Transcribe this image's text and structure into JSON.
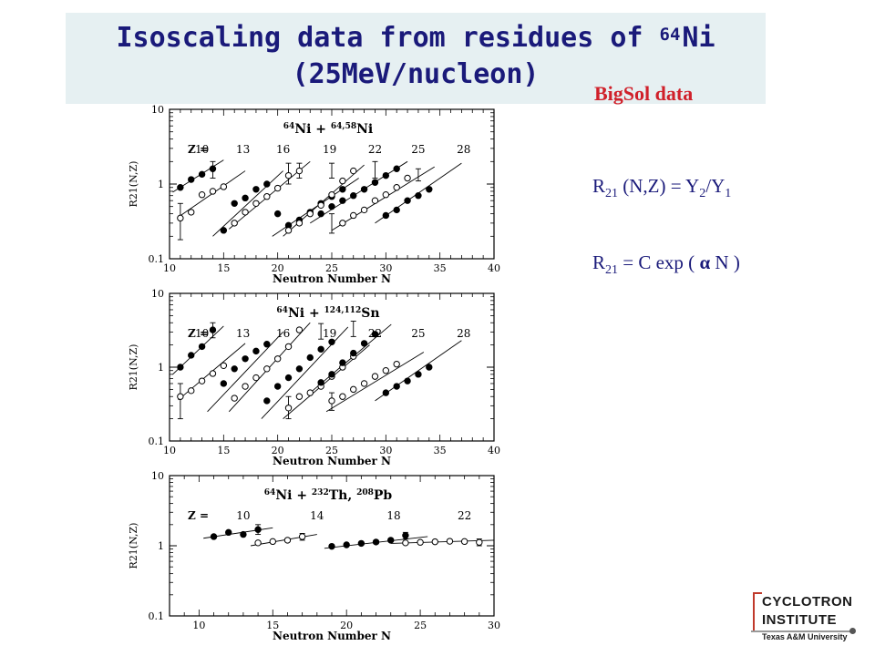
{
  "slide": {
    "title_line1": "Isoscaling data from residues of ",
    "title_sup": "64",
    "title_elem": "Ni",
    "title_line2": "(25MeV/nucleon)",
    "bigsol": "BigSol data",
    "formula1": {
      "R": "R",
      "sub1": "21",
      "rest1": " (N,Z) = Y",
      "sub2": "2",
      "rest2": "/Y",
      "sub3": "1"
    },
    "formula2": {
      "R": "R",
      "sub1": "21",
      "rest1": " = C exp ( ",
      "alpha": "α",
      "rest2": " N )"
    },
    "logo": {
      "line1": "CYCLOTRON",
      "line2": "INSTITUTE",
      "line3": "Texas A&M University"
    },
    "colors": {
      "title": "#1a1a7a",
      "bigsol": "#d0202a",
      "title_bg": "#e6f0f2"
    }
  },
  "chart_data": [
    {
      "type": "scatter",
      "title_parts": [
        "64",
        "Ni + ",
        "64,58",
        "Ni"
      ],
      "xlabel": "Neutron Number N",
      "ylabel": "R21(N,Z)",
      "xlim": [
        10,
        40
      ],
      "ylim": [
        0.1,
        10
      ],
      "ylog": true,
      "xticks": [
        10,
        15,
        20,
        25,
        30,
        35,
        40
      ],
      "yticks": [
        0.1,
        1,
        10
      ],
      "z_label": "Z =",
      "z_values": [
        "10",
        "13",
        "16",
        "19",
        "22",
        "25",
        "28"
      ],
      "z_positions": [
        13.0,
        16.8,
        20.5,
        24.8,
        29.0,
        33.0,
        37.2
      ],
      "series": [
        {
          "z": 10,
          "filled": true,
          "x": [
            11,
            12,
            13,
            14
          ],
          "y": [
            0.9,
            1.15,
            1.35,
            1.6
          ],
          "line_x": [
            10.3,
            15
          ],
          "line_y": [
            0.78,
            2.1
          ]
        },
        {
          "z": 11,
          "filled": false,
          "x": [
            11,
            12,
            13,
            14,
            15
          ],
          "y": [
            0.35,
            0.42,
            0.72,
            0.8,
            0.92
          ],
          "line_x": [
            10.8,
            17
          ],
          "line_y": [
            0.36,
            1.5
          ]
        },
        {
          "z": 12,
          "filled": true,
          "x": [
            15,
            16,
            17,
            18,
            19
          ],
          "y": [
            0.24,
            0.55,
            0.65,
            0.85,
            1.0
          ],
          "line_x": [
            14,
            20.5
          ],
          "line_y": [
            0.2,
            1.5
          ]
        },
        {
          "z": 13,
          "filled": false,
          "x": [
            16,
            17,
            18,
            19,
            20,
            21,
            22
          ],
          "y": [
            0.3,
            0.42,
            0.55,
            0.68,
            0.88,
            1.3,
            1.5
          ],
          "line_x": [
            15.5,
            23
          ],
          "line_y": [
            0.25,
            2.0
          ]
        },
        {
          "z": 14,
          "filled": true,
          "x": [
            20,
            21,
            22,
            23,
            24,
            25,
            26
          ],
          "y": [
            0.4,
            0.28,
            0.33,
            0.42,
            0.55,
            0.68,
            0.85
          ],
          "line_x": [
            19.5,
            27.5
          ],
          "line_y": [
            0.2,
            1.2
          ]
        },
        {
          "z": 15,
          "filled": false,
          "x": [
            21,
            22,
            23,
            24,
            25,
            26,
            27
          ],
          "y": [
            0.24,
            0.3,
            0.4,
            0.52,
            0.72,
            1.1,
            1.5
          ],
          "line_x": [
            20.5,
            28
          ],
          "line_y": [
            0.2,
            1.8
          ]
        },
        {
          "z": 16,
          "filled": true,
          "x": [
            24,
            25,
            26,
            27,
            28,
            29,
            30,
            31
          ],
          "y": [
            0.4,
            0.5,
            0.6,
            0.7,
            0.85,
            1.05,
            1.3,
            1.6
          ],
          "line_x": [
            23,
            32
          ],
          "line_y": [
            0.3,
            2.0
          ]
        },
        {
          "z": 17,
          "filled": false,
          "x": [
            26,
            27,
            28,
            29,
            30,
            31,
            32
          ],
          "y": [
            0.3,
            0.38,
            0.45,
            0.6,
            0.72,
            0.9,
            1.2
          ],
          "line_x": [
            25,
            34.5
          ],
          "line_y": [
            0.24,
            1.7
          ]
        },
        {
          "z": 18,
          "filled": true,
          "x": [
            30,
            31,
            32,
            33,
            34
          ],
          "y": [
            0.38,
            0.45,
            0.6,
            0.7,
            0.85
          ],
          "line_x": [
            29,
            37
          ],
          "line_y": [
            0.3,
            1.9
          ]
        }
      ],
      "error_bars": [
        {
          "x": 11,
          "y": 0.35,
          "lo": 0.18,
          "hi": 0.55
        },
        {
          "x": 14,
          "y": 1.6,
          "lo": 1.2,
          "hi": 2.0
        },
        {
          "x": 21,
          "y": 1.3,
          "lo": 1.0,
          "hi": 1.9
        },
        {
          "x": 22,
          "y": 1.5,
          "lo": 1.2,
          "hi": 1.9
        },
        {
          "x": 25,
          "y": 1.5,
          "lo": 1.2,
          "hi": 1.9
        },
        {
          "x": 25,
          "y": 0.3,
          "lo": 0.22,
          "hi": 0.4
        },
        {
          "x": 29,
          "y": 1.6,
          "lo": 1.2,
          "hi": 2.0
        },
        {
          "x": 33,
          "y": 1.3,
          "lo": 1.1,
          "hi": 1.6
        }
      ]
    },
    {
      "type": "scatter",
      "title_parts": [
        "64",
        "Ni + ",
        "124,112",
        "Sn"
      ],
      "xlabel": "Neutron Number N",
      "ylabel": "R21(N,Z)",
      "xlim": [
        10,
        40
      ],
      "ylim": [
        0.1,
        10
      ],
      "ylog": true,
      "xticks": [
        10,
        15,
        20,
        25,
        30,
        35,
        40
      ],
      "yticks": [
        0.1,
        1,
        10
      ],
      "z_label": "Z =",
      "z_values": [
        "10",
        "13",
        "16",
        "19",
        "22",
        "25",
        "28"
      ],
      "z_positions": [
        13.0,
        16.8,
        20.5,
        24.8,
        29.0,
        33.0,
        37.2
      ],
      "series": [
        {
          "z": 10,
          "filled": true,
          "x": [
            11,
            12,
            13,
            14
          ],
          "y": [
            1.0,
            1.45,
            1.9,
            3.2
          ],
          "line_x": [
            10.3,
            15
          ],
          "line_y": [
            0.8,
            3.6
          ]
        },
        {
          "z": 11,
          "filled": false,
          "x": [
            11,
            12,
            13,
            14,
            15
          ],
          "y": [
            0.4,
            0.48,
            0.65,
            0.82,
            1.05
          ],
          "line_x": [
            10.8,
            17
          ],
          "line_y": [
            0.36,
            2.1
          ]
        },
        {
          "z": 12,
          "filled": true,
          "x": [
            15,
            16,
            17,
            18,
            19
          ],
          "y": [
            0.6,
            0.95,
            1.3,
            1.65,
            2.05
          ],
          "line_x": [
            13.5,
            20.5
          ],
          "line_y": [
            0.25,
            3.0
          ]
        },
        {
          "z": 13,
          "filled": false,
          "x": [
            16,
            17,
            18,
            19,
            20,
            21,
            22
          ],
          "y": [
            0.38,
            0.55,
            0.72,
            0.95,
            1.3,
            1.9,
            3.2
          ],
          "line_x": [
            15.5,
            23
          ],
          "line_y": [
            0.25,
            4.0
          ]
        },
        {
          "z": 14,
          "filled": true,
          "x": [
            19,
            20,
            21,
            22,
            23,
            24,
            25
          ],
          "y": [
            0.35,
            0.55,
            0.72,
            0.95,
            1.35,
            1.75,
            2.2
          ],
          "line_x": [
            18.5,
            26.5
          ],
          "line_y": [
            0.2,
            3.5
          ]
        },
        {
          "z": 15,
          "filled": false,
          "x": [
            21,
            22,
            23,
            24,
            25,
            26,
            27
          ],
          "y": [
            0.28,
            0.4,
            0.45,
            0.55,
            0.75,
            1.0,
            1.4
          ],
          "line_x": [
            20.5,
            28.5
          ],
          "line_y": [
            0.2,
            2.0
          ]
        },
        {
          "z": 16,
          "filled": true,
          "x": [
            24,
            25,
            26,
            27,
            28,
            29
          ],
          "y": [
            0.62,
            0.8,
            1.15,
            1.55,
            2.1,
            2.8
          ],
          "line_x": [
            23,
            30.5
          ],
          "line_y": [
            0.45,
            3.8
          ]
        },
        {
          "z": 17,
          "filled": false,
          "x": [
            25,
            26,
            27,
            28,
            29,
            30,
            31
          ],
          "y": [
            0.35,
            0.4,
            0.5,
            0.6,
            0.75,
            0.9,
            1.1
          ],
          "line_x": [
            24.5,
            33.5
          ],
          "line_y": [
            0.25,
            1.6
          ]
        },
        {
          "z": 18,
          "filled": true,
          "x": [
            30,
            31,
            32,
            33,
            34
          ],
          "y": [
            0.45,
            0.55,
            0.65,
            0.8,
            1.0
          ],
          "line_x": [
            29,
            37
          ],
          "line_y": [
            0.35,
            2.3
          ]
        }
      ],
      "error_bars": [
        {
          "x": 11,
          "y": 0.4,
          "lo": 0.2,
          "hi": 0.6
        },
        {
          "x": 14,
          "y": 3.2,
          "lo": 2.5,
          "hi": 4.0
        },
        {
          "x": 21,
          "y": 0.28,
          "lo": 0.2,
          "hi": 0.4
        },
        {
          "x": 24,
          "y": 3.0,
          "lo": 2.4,
          "hi": 3.9
        },
        {
          "x": 25,
          "y": 0.35,
          "lo": 0.26,
          "hi": 0.45
        },
        {
          "x": 27,
          "y": 3.3,
          "lo": 2.6,
          "hi": 4.2
        }
      ]
    },
    {
      "type": "scatter",
      "title_parts": [
        "64",
        "Ni + ",
        "232",
        "Th, ",
        "208",
        "Pb"
      ],
      "xlabel": "Neutron Number N",
      "ylabel": "R21(N,Z)",
      "xlim": [
        8,
        30
      ],
      "ylim": [
        0.1,
        10
      ],
      "ylog": true,
      "xticks": [
        10,
        15,
        20,
        25,
        30
      ],
      "yticks": [
        0.1,
        1,
        10
      ],
      "z_label": "Z =",
      "z_values": [
        "10",
        "14",
        "18",
        "22"
      ],
      "z_positions": [
        13.0,
        18.0,
        23.2,
        28.0
      ],
      "series": [
        {
          "z": 10,
          "filled": true,
          "x": [
            11,
            12,
            13,
            14
          ],
          "y": [
            1.35,
            1.55,
            1.45,
            1.7
          ],
          "line_x": [
            10.3,
            15
          ],
          "line_y": [
            1.28,
            1.8
          ]
        },
        {
          "z": 12,
          "filled": false,
          "x": [
            14,
            15,
            16,
            17
          ],
          "y": [
            1.1,
            1.15,
            1.2,
            1.35
          ],
          "line_x": [
            13.5,
            18
          ],
          "line_y": [
            1.0,
            1.45
          ]
        },
        {
          "z": 18,
          "filled": true,
          "x": [
            19,
            20,
            21,
            22,
            23,
            24
          ],
          "y": [
            0.98,
            1.03,
            1.08,
            1.13,
            1.2,
            1.4
          ],
          "line_x": [
            18.5,
            25.5
          ],
          "line_y": [
            0.92,
            1.35
          ]
        },
        {
          "z": 20,
          "filled": false,
          "x": [
            24,
            25,
            26,
            27,
            28,
            29
          ],
          "y": [
            1.1,
            1.12,
            1.14,
            1.16,
            1.15,
            1.12
          ],
          "line_x": [
            23,
            30
          ],
          "line_y": [
            1.08,
            1.2
          ]
        }
      ],
      "error_bars": [
        {
          "x": 14,
          "y": 1.7,
          "lo": 1.45,
          "hi": 2.0
        },
        {
          "x": 17,
          "y": 1.35,
          "lo": 1.2,
          "hi": 1.5
        },
        {
          "x": 24,
          "y": 1.4,
          "lo": 1.25,
          "hi": 1.55
        },
        {
          "x": 29,
          "y": 1.12,
          "lo": 1.0,
          "hi": 1.25
        }
      ]
    }
  ]
}
